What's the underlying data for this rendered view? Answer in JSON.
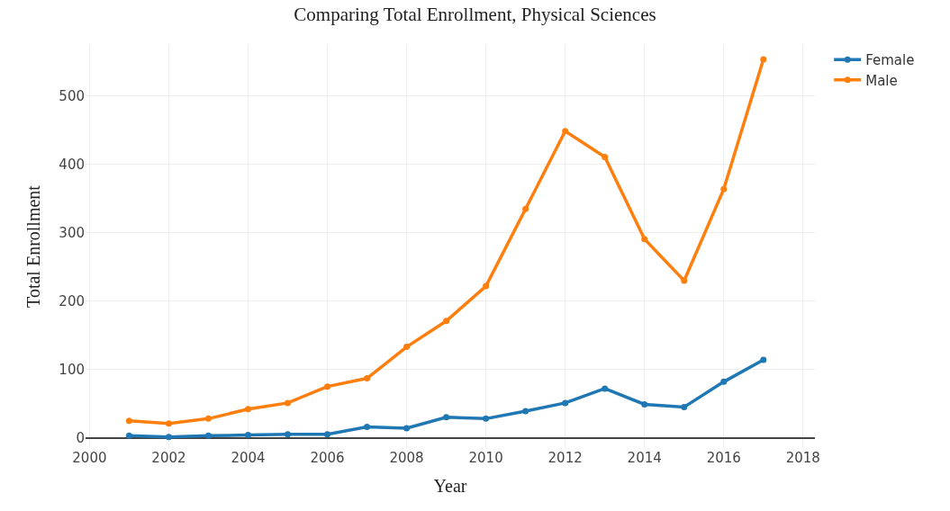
{
  "chart_data": {
    "type": "line",
    "title": "Comparing Total Enrollment, Physical Sciences",
    "xlabel": "Year",
    "ylabel": "Total Enrollment",
    "x": [
      2001,
      2002,
      2003,
      2004,
      2005,
      2006,
      2007,
      2008,
      2009,
      2010,
      2011,
      2012,
      2013,
      2014,
      2015,
      2016,
      2017
    ],
    "series": [
      {
        "name": "Female",
        "color": "#1f77b4",
        "values": [
          3,
          1,
          3,
          4,
          5,
          5,
          16,
          14,
          30,
          28,
          39,
          51,
          72,
          49,
          45,
          82,
          114
        ]
      },
      {
        "name": "Male",
        "color": "#ff7f0e",
        "values": [
          25,
          21,
          28,
          42,
          51,
          75,
          87,
          133,
          171,
          222,
          335,
          449,
          411,
          291,
          230,
          364,
          554
        ]
      }
    ],
    "xlim": [
      1999.9,
      2018.3
    ],
    "xticks": [
      2000,
      2002,
      2004,
      2006,
      2008,
      2010,
      2012,
      2014,
      2016,
      2018
    ],
    "ylim": [
      -15,
      575
    ],
    "yticks": [
      0,
      100,
      200,
      300,
      400,
      500
    ],
    "grid": true,
    "legend": "top right",
    "marker": "circle",
    "line_style": "solid"
  }
}
